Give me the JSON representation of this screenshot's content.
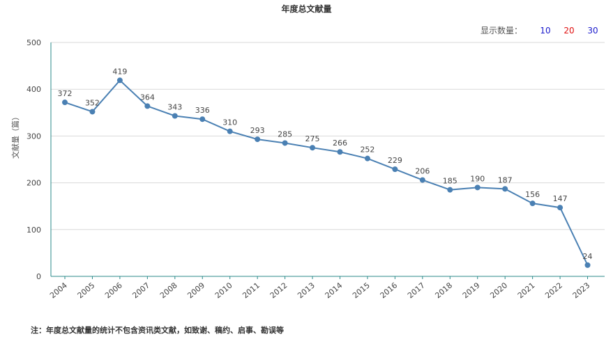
{
  "chart_data": {
    "type": "line",
    "title": "年度总文献量",
    "xlabel": "",
    "ylabel": "文献量（篇）",
    "categories": [
      "2004",
      "2005",
      "2006",
      "2007",
      "2008",
      "2009",
      "2010",
      "2011",
      "2012",
      "2013",
      "2014",
      "2015",
      "2016",
      "2017",
      "2018",
      "2019",
      "2020",
      "2021",
      "2022",
      "2023"
    ],
    "values": [
      372,
      352,
      419,
      364,
      343,
      336,
      310,
      293,
      285,
      275,
      266,
      252,
      229,
      206,
      185,
      190,
      187,
      156,
      147,
      24
    ],
    "data_labels": [
      "372",
      "352",
      "419",
      "364",
      "343",
      "336",
      "310",
      "293",
      "285",
      "275",
      "266",
      "252",
      "229",
      "206",
      "185",
      "190",
      "187",
      "156",
      "147",
      "24"
    ],
    "yticks": [
      "0",
      "100",
      "200",
      "300",
      "400",
      "500"
    ],
    "ylim": [
      0,
      500
    ],
    "grid": true,
    "line_color": "#4a80b3"
  },
  "controls": {
    "display_count_label": "显示数量：",
    "option_10": "10",
    "option_20": "20",
    "option_30": "30"
  },
  "footnote": "注：年度总文献量的统计不包含资讯类文献，如致谢、稿约、启事、勘误等"
}
